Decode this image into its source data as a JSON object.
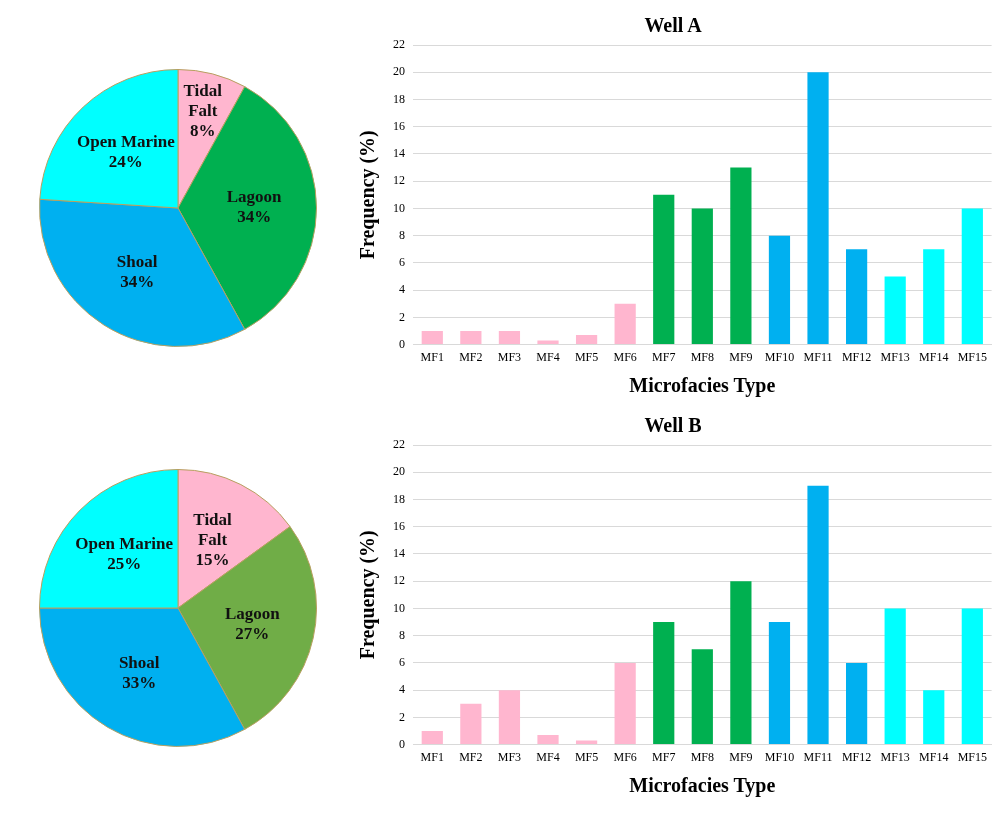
{
  "chart_data": [
    {
      "type": "pie",
      "categories": [
        "Tidal Falt",
        "Lagoon",
        "Shoal",
        "Open Marine"
      ],
      "values": [
        8,
        34,
        34,
        24
      ],
      "colors": [
        "#ffb6cf",
        "#00b050",
        "#00b0f0",
        "#00ffff"
      ],
      "value_labels": [
        "8%",
        "34%",
        "34%",
        "24%"
      ]
    },
    {
      "type": "bar",
      "title": "Well A",
      "xlabel": "Microfacies Type",
      "ylabel": "Frequency (%)",
      "categories": [
        "MF1",
        "MF2",
        "MF3",
        "MF4",
        "MF5",
        "MF6",
        "MF7",
        "MF8",
        "MF9",
        "MF10",
        "MF11",
        "MF12",
        "MF13",
        "MF14",
        "MF15"
      ],
      "values": [
        1,
        1,
        1,
        0.3,
        0.7,
        3,
        11,
        10,
        13,
        8,
        20,
        7,
        5,
        7,
        10
      ],
      "colors": [
        "#ffb6cf",
        "#ffb6cf",
        "#ffb6cf",
        "#ffb6cf",
        "#ffb6cf",
        "#ffb6cf",
        "#00b050",
        "#00b050",
        "#00b050",
        "#00b0f0",
        "#00b0f0",
        "#00b0f0",
        "#00ffff",
        "#00ffff",
        "#00ffff"
      ],
      "ylim": [
        0,
        22
      ],
      "yticks": [
        0,
        2,
        4,
        6,
        8,
        10,
        12,
        14,
        16,
        18,
        20,
        22
      ],
      "grid": "y"
    },
    {
      "type": "pie",
      "categories": [
        "Tidal Falt",
        "Lagoon",
        "Shoal",
        "Open Marine"
      ],
      "values": [
        15,
        27,
        33,
        25
      ],
      "colors": [
        "#ffb6cf",
        "#70ad47",
        "#00b0f0",
        "#00ffff"
      ],
      "value_labels": [
        "15%",
        "27%",
        "33%",
        "25%"
      ]
    },
    {
      "type": "bar",
      "title": "Well B",
      "xlabel": "Microfacies Type",
      "ylabel": "Frequency (%)",
      "categories": [
        "MF1",
        "MF2",
        "MF3",
        "MF4",
        "MF5",
        "MF6",
        "MF7",
        "MF8",
        "MF9",
        "MF10",
        "MF11",
        "MF12",
        "MF13",
        "MF14",
        "MF15"
      ],
      "values": [
        1,
        3,
        4,
        0.7,
        0.3,
        6,
        9,
        7,
        12,
        9,
        19,
        6,
        10,
        4,
        10
      ],
      "colors": [
        "#ffb6cf",
        "#ffb6cf",
        "#ffb6cf",
        "#ffb6cf",
        "#ffb6cf",
        "#ffb6cf",
        "#00b050",
        "#00b050",
        "#00b050",
        "#00b0f0",
        "#00b0f0",
        "#00b0f0",
        "#00ffff",
        "#00ffff",
        "#00ffff"
      ],
      "ylim": [
        0,
        22
      ],
      "yticks": [
        0,
        2,
        4,
        6,
        8,
        10,
        12,
        14,
        16,
        18,
        20,
        22
      ],
      "grid": "y"
    }
  ]
}
